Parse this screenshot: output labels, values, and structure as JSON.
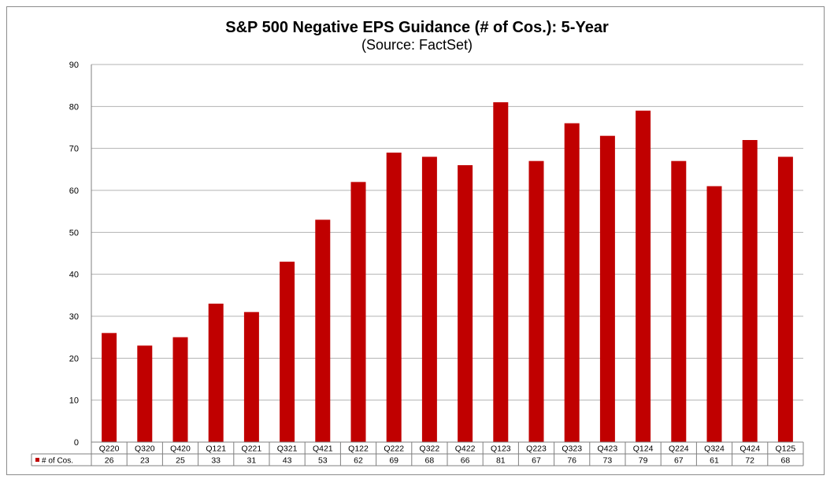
{
  "chart_data": {
    "type": "bar",
    "title": "S&P 500 Negative EPS Guidance (# of Cos.): 5-Year",
    "subtitle": "(Source: FactSet)",
    "categories": [
      "Q220",
      "Q320",
      "Q420",
      "Q121",
      "Q221",
      "Q321",
      "Q421",
      "Q122",
      "Q222",
      "Q322",
      "Q422",
      "Q123",
      "Q223",
      "Q323",
      "Q423",
      "Q124",
      "Q224",
      "Q324",
      "Q424",
      "Q125"
    ],
    "series": [
      {
        "name": "# of Cos.",
        "values": [
          26,
          23,
          25,
          33,
          31,
          43,
          53,
          62,
          69,
          68,
          66,
          81,
          67,
          76,
          73,
          79,
          67,
          61,
          72,
          68
        ]
      }
    ],
    "ylim": [
      0,
      90
    ],
    "yticks": [
      0,
      10,
      20,
      30,
      40,
      50,
      60,
      70,
      80,
      90
    ],
    "grid": true,
    "legend_placement": "data-table",
    "colors": {
      "bar": "#c00000",
      "grid": "#b3b3b3",
      "axis": "#7f7f7f"
    }
  }
}
